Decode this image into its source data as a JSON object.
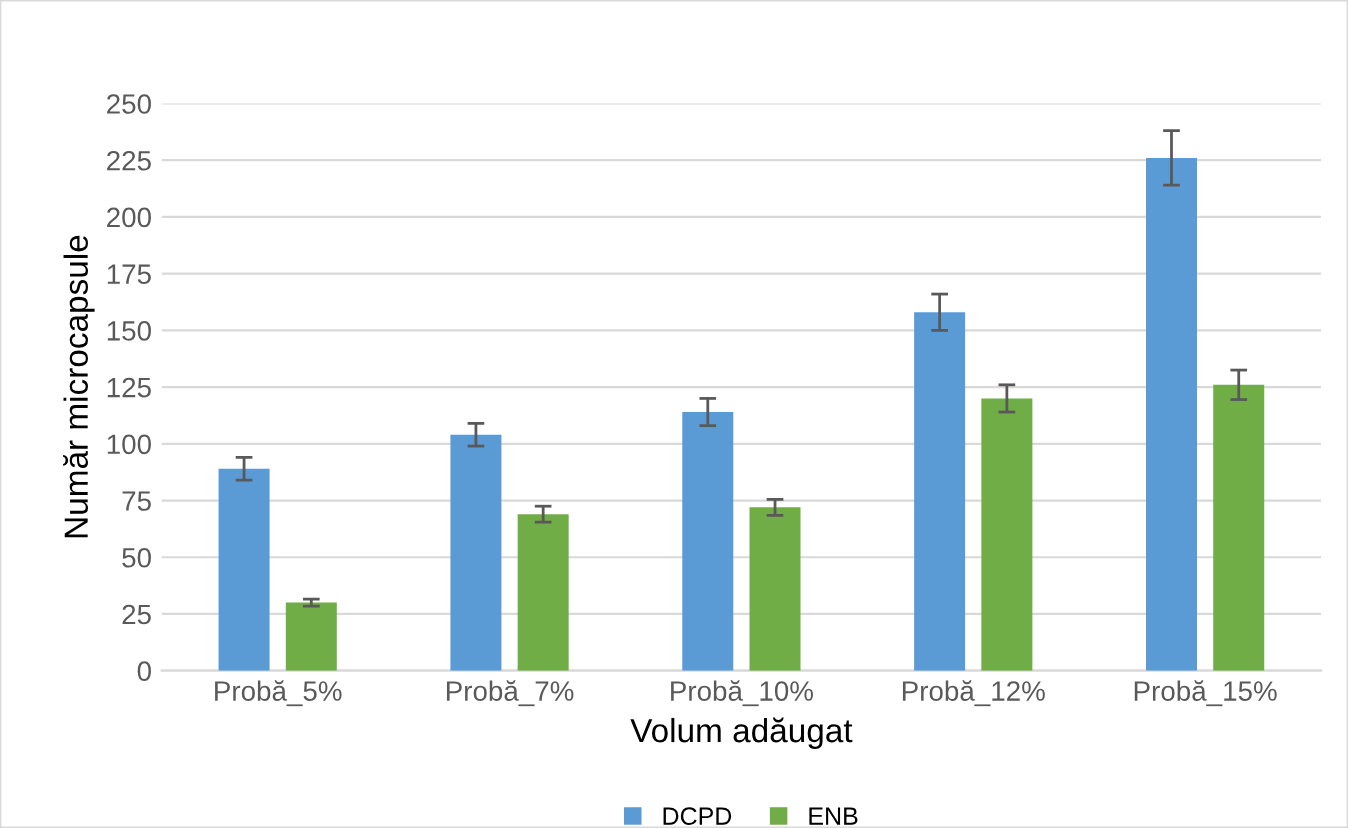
{
  "chart_data": {
    "type": "bar",
    "xlabel": "Volum adăugat",
    "ylabel": "Număr microcapsule",
    "categories": [
      "Probă_5%",
      "Probă_7%",
      "Probă_10%",
      "Probă_12%",
      "Probă_15%"
    ],
    "series": [
      {
        "name": "DCPD",
        "color": "#5b9bd5",
        "values": [
          89,
          104,
          114,
          158,
          226
        ],
        "errors": [
          5,
          5,
          6,
          8,
          12
        ]
      },
      {
        "name": "ENB",
        "color": "#70ad47",
        "values": [
          30,
          69,
          72,
          120,
          126
        ],
        "errors": [
          1.5,
          3.5,
          3.5,
          6,
          6.5
        ]
      }
    ],
    "ylim": [
      0,
      250
    ],
    "yticks": [
      0,
      25,
      50,
      75,
      100,
      125,
      150,
      175,
      200,
      225,
      250
    ],
    "grid": "y",
    "legend": "bottom"
  }
}
